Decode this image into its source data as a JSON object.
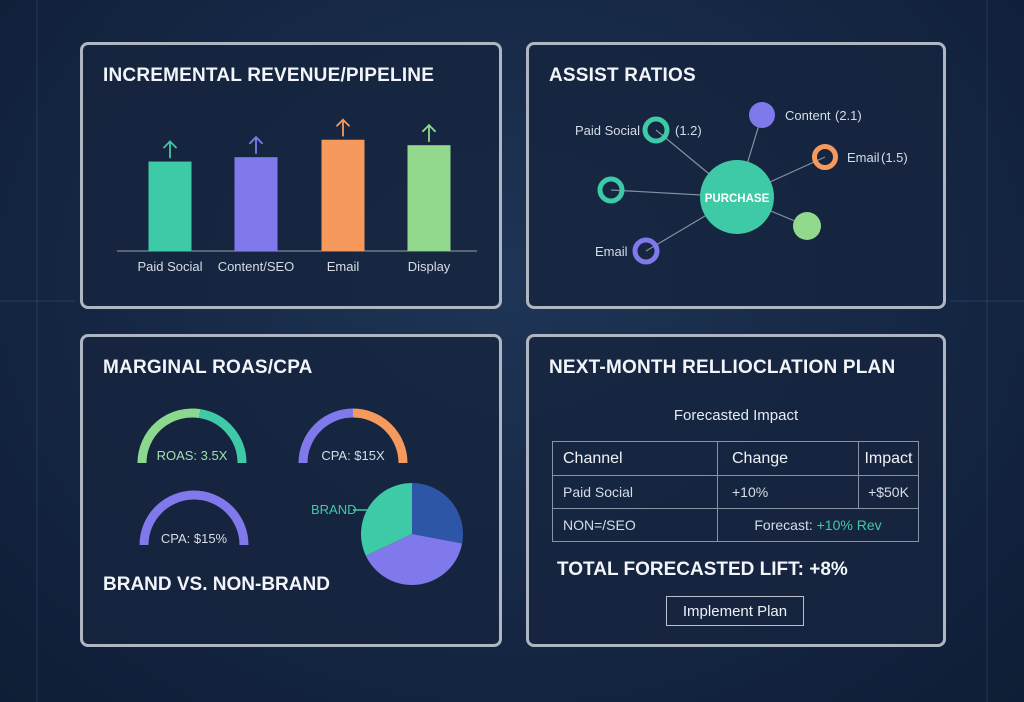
{
  "panels": {
    "revenue": {
      "title": "INCREMENTAL REVENUE/PIPELINE"
    },
    "assist": {
      "title": "ASSIST RATIOS",
      "center_label": "PURCHASE",
      "nodes": [
        {
          "label": "Paid Social",
          "value": "(1.2)"
        },
        {
          "label": "Content",
          "value": "(2.1)"
        },
        {
          "label": "Email",
          "value": "(1.5)"
        },
        {
          "label": "Email",
          "value": ""
        }
      ]
    },
    "roas": {
      "title": "MARGINAL ROAS/CPA",
      "gauges": [
        {
          "label": "ROAS: 3.5X"
        },
        {
          "label": "CPA: $15X"
        },
        {
          "label": "CPA: $15%"
        }
      ],
      "brand_title": "BRAND VS. NON-BRAND",
      "pie_label": "BRAND"
    },
    "plan": {
      "title": "NEXT-MONTH RELLIOCLATION PLAN",
      "subtitle": "Forecasted Impact",
      "headers": [
        "Channel",
        "Change",
        "Impact"
      ],
      "rows": [
        {
          "channel": "Paid Social",
          "change": "+10%",
          "impact": "+$50K"
        },
        {
          "channel": "NON=/SEO",
          "forecast_label": "Forecast:",
          "forecast_value": "+10% Rev"
        }
      ],
      "total": "TOTAL FORECASTED LIFT: +8%",
      "button_label": "Implement Plan"
    }
  },
  "chart_data": [
    {
      "type": "bar",
      "title": "INCREMENTAL REVENUE/PIPELINE",
      "categories": [
        "Paid Social",
        "Content/SEO",
        "Email",
        "Display"
      ],
      "values": [
        82,
        86,
        102,
        97
      ],
      "colors": [
        "#3ec9a7",
        "#8079ec",
        "#f59a5c",
        "#92d98e"
      ],
      "ylim": [
        0,
        110
      ],
      "grid": false
    },
    {
      "type": "pie",
      "title": "BRAND VS. NON-BRAND",
      "values": [
        0.28,
        0.4,
        0.32
      ],
      "colors": [
        "#2e56a6",
        "#8079ec",
        "#3ec9a7"
      ]
    }
  ],
  "gauge_levels": [
    {
      "fill": 0.55,
      "colors": [
        "#8bd98e",
        "#3ec9a7"
      ]
    },
    {
      "fill": 0.5,
      "colors": [
        "#8079ec",
        "#f59a5c"
      ]
    },
    {
      "fill": 1.0,
      "colors": [
        "#8079ec",
        "#8079ec"
      ]
    }
  ]
}
